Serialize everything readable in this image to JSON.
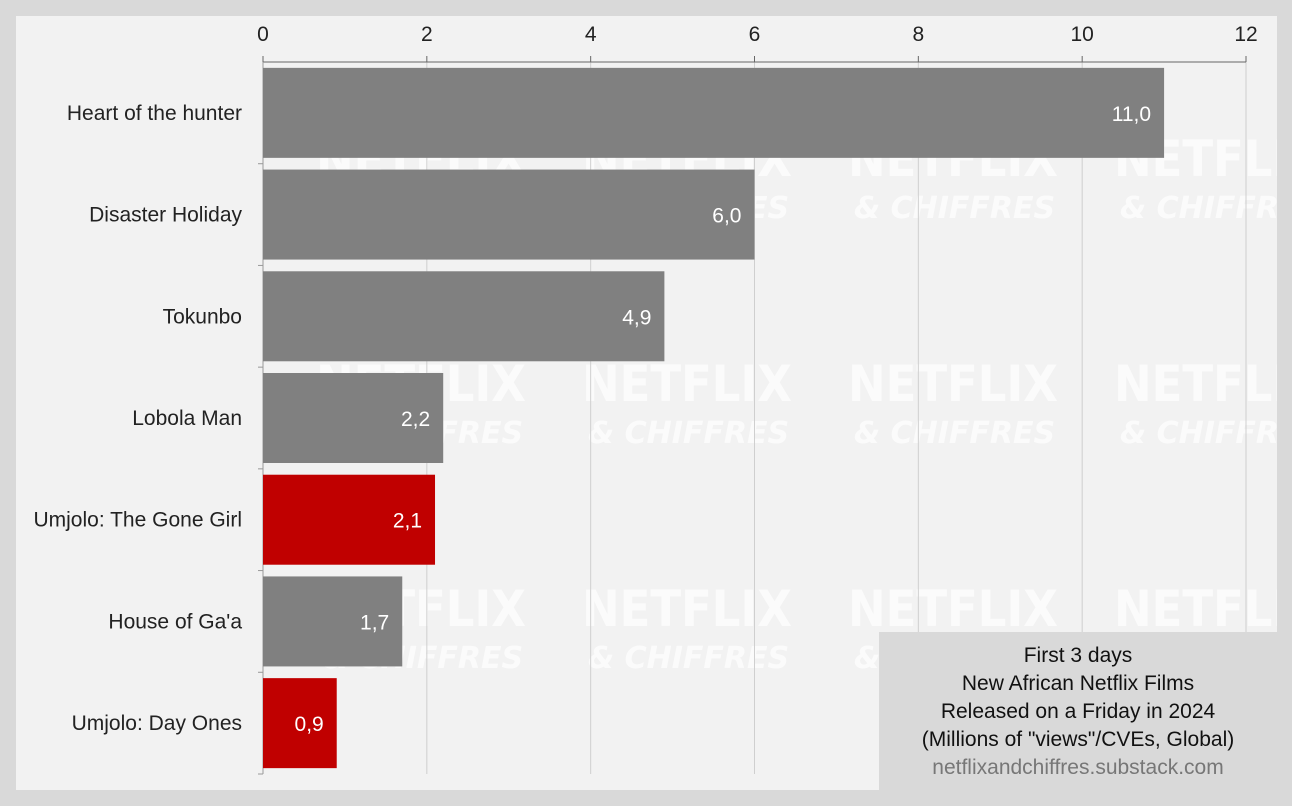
{
  "chart_data": {
    "type": "bar",
    "orientation": "horizontal",
    "categories": [
      "Heart of the hunter",
      "Disaster Holiday",
      "Tokunbo",
      "Lobola Man",
      "Umjolo: The Gone Girl",
      "House of Ga'a",
      "Umjolo: Day Ones"
    ],
    "values": [
      11.0,
      6.0,
      4.9,
      2.2,
      2.1,
      1.7,
      0.9
    ],
    "value_labels": [
      "11,0",
      "6,0",
      "4,9",
      "2,2",
      "2,1",
      "1,7",
      "0,9"
    ],
    "highlighted": [
      false,
      false,
      false,
      false,
      true,
      false,
      true
    ],
    "xlim": [
      0,
      12
    ],
    "ticks": [
      0,
      2,
      4,
      6,
      8,
      10,
      12
    ],
    "tick_labels": [
      "0",
      "2",
      "4",
      "6",
      "8",
      "10",
      "12"
    ],
    "axis_position": "top",
    "grid": true,
    "colors": {
      "default": "#808080",
      "highlight": "#c00000",
      "grid": "#cfcfcf",
      "background": "#f2f2f2"
    }
  },
  "info_box": {
    "line1": "First 3 days",
    "line2": "New African Netflix Films",
    "line3": "Released on a Friday in 2024",
    "line4": "(Millions of \"views\"/CVEs, Global)",
    "source": "netflixandchiffres.substack.com"
  },
  "watermark": {
    "line1": "NETFLIX",
    "line2": "& CHIFFRES"
  }
}
